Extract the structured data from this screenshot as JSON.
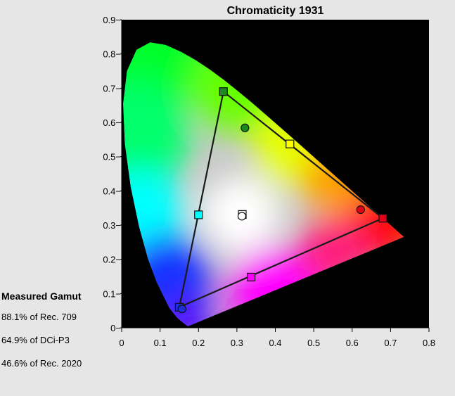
{
  "chart_data": {
    "type": "scatter",
    "title": "Chromaticity 1931",
    "xlabel": "",
    "ylabel": "",
    "xlim": [
      0,
      0.8
    ],
    "ylim": [
      0,
      0.9
    ],
    "xticks": [
      "0",
      "0.1",
      "0.2",
      "0.3",
      "0.4",
      "0.5",
      "0.6",
      "0.7",
      "0.8"
    ],
    "yticks": [
      "0−",
      "0.1−",
      "0.2−",
      "0.3−",
      "0.4−",
      "0.5−",
      "0.6−",
      "0.7−",
      "0.8−",
      "0.9−"
    ],
    "grid": false,
    "background": "#000000",
    "spectral_locus": [
      [
        0.1741,
        0.005
      ],
      [
        0.1738,
        0.0049
      ],
      [
        0.1733,
        0.0048
      ],
      [
        0.1726,
        0.0048
      ],
      [
        0.1714,
        0.0051
      ],
      [
        0.1689,
        0.0069
      ],
      [
        0.1644,
        0.0109
      ],
      [
        0.1566,
        0.0177
      ],
      [
        0.144,
        0.0297
      ],
      [
        0.1241,
        0.0578
      ],
      [
        0.0913,
        0.1327
      ],
      [
        0.0687,
        0.2007
      ],
      [
        0.0454,
        0.295
      ],
      [
        0.0235,
        0.4127
      ],
      [
        0.0082,
        0.5384
      ],
      [
        0.0039,
        0.6548
      ],
      [
        0.0139,
        0.7502
      ],
      [
        0.0389,
        0.812
      ],
      [
        0.0743,
        0.8338
      ],
      [
        0.1142,
        0.8262
      ],
      [
        0.1547,
        0.8059
      ],
      [
        0.1929,
        0.7816
      ],
      [
        0.2296,
        0.7543
      ],
      [
        0.2658,
        0.7243
      ],
      [
        0.3016,
        0.6923
      ],
      [
        0.3373,
        0.6589
      ],
      [
        0.3731,
        0.6245
      ],
      [
        0.4087,
        0.5896
      ],
      [
        0.4441,
        0.5547
      ],
      [
        0.4788,
        0.5202
      ],
      [
        0.5125,
        0.4866
      ],
      [
        0.5448,
        0.4544
      ],
      [
        0.5752,
        0.4242
      ],
      [
        0.6029,
        0.3965
      ],
      [
        0.627,
        0.3725
      ],
      [
        0.6482,
        0.3514
      ],
      [
        0.6658,
        0.334
      ],
      [
        0.6801,
        0.3197
      ],
      [
        0.6915,
        0.3083
      ],
      [
        0.7006,
        0.2993
      ],
      [
        0.7079,
        0.292
      ],
      [
        0.714,
        0.2859
      ],
      [
        0.719,
        0.2809
      ],
      [
        0.723,
        0.277
      ],
      [
        0.726,
        0.274
      ],
      [
        0.7283,
        0.2717
      ],
      [
        0.73,
        0.27
      ],
      [
        0.7311,
        0.2689
      ],
      [
        0.732,
        0.268
      ],
      [
        0.7327,
        0.2673
      ],
      [
        0.7334,
        0.2666
      ],
      [
        0.734,
        0.266
      ],
      [
        0.7344,
        0.2656
      ],
      [
        0.7346,
        0.2654
      ],
      [
        0.7347,
        0.2653
      ]
    ],
    "reference_gamut": {
      "primaries": [
        [
          0.68,
          0.32
        ],
        [
          0.265,
          0.69
        ],
        [
          0.15,
          0.06
        ]
      ],
      "secondaries": [
        [
          0.438,
          0.537
        ],
        [
          0.2,
          0.33
        ],
        [
          0.337,
          0.148
        ]
      ],
      "white": [
        0.314,
        0.331
      ],
      "primary_colors": [
        "#e0001a",
        "#1d8a1d",
        "#1f2fd8"
      ],
      "secondary_colors": [
        "#ffff00",
        "#00ffff",
        "#ff00ff"
      ]
    },
    "measured_points": [
      {
        "x": 0.622,
        "y": 0.345,
        "color": "#e0001a"
      },
      {
        "x": 0.321,
        "y": 0.584,
        "color": "#1d8a1d"
      },
      {
        "x": 0.157,
        "y": 0.055,
        "color": "#1f2fd8"
      },
      {
        "x": 0.313,
        "y": 0.326,
        "color": "#ffffff"
      }
    ]
  },
  "gamut": {
    "title": "Measured Gamut",
    "lines": [
      "88.1% of Rec. 709",
      "64.9% of DCi-P3",
      "46.6% of Rec. 2020"
    ]
  }
}
